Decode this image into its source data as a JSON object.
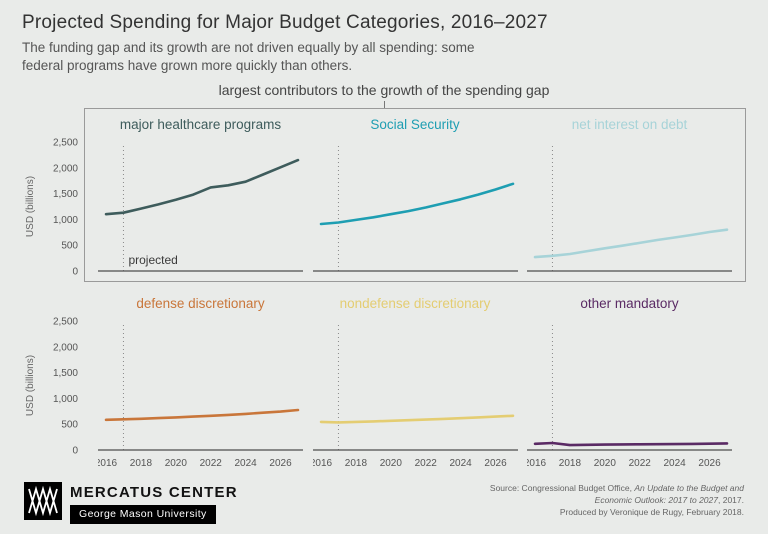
{
  "page": {
    "title": "Projected Spending for Major Budget Categories, 2016–2027",
    "subtitle_lines": [
      "The funding gap and its growth are not driven equally by all spending: some",
      "federal programs have grown more quickly than others."
    ],
    "group_label": "largest contributors to the growth of the spending gap"
  },
  "axes": {
    "y_label": "USD (billions)"
  },
  "chart_data": {
    "type": "line",
    "x": [
      2016,
      2017,
      2018,
      2019,
      2020,
      2021,
      2022,
      2023,
      2024,
      2025,
      2026,
      2027
    ],
    "xlim": [
      2016,
      2027
    ],
    "ylim": [
      0,
      2500
    ],
    "x_ticks": [
      2016,
      2018,
      2020,
      2022,
      2024,
      2026
    ],
    "y_ticks": [
      {
        "v": 2500,
        "label": "2,500"
      },
      {
        "v": 2000,
        "label": "2,000"
      },
      {
        "v": 1500,
        "label": "1,500"
      },
      {
        "v": 1000,
        "label": "1,000"
      },
      {
        "v": 500,
        "label": "500"
      },
      {
        "v": 0,
        "label": "0"
      }
    ],
    "projected_x": 2017,
    "projected_label": "projected",
    "panels": [
      {
        "title": "major healthcare programs",
        "color": "#3e5c5c",
        "values": [
          1100,
          1130,
          1210,
          1290,
          1380,
          1480,
          1620,
          1660,
          1730,
          1870,
          2010,
          2150
        ]
      },
      {
        "title": "Social Security",
        "color": "#1e9eb2",
        "values": [
          910,
          940,
          990,
          1040,
          1100,
          1160,
          1230,
          1310,
          1390,
          1480,
          1580,
          1690
        ]
      },
      {
        "title": "net interest on debt",
        "color": "#a7d3d8",
        "values": [
          270,
          295,
          330,
          385,
          440,
          490,
          545,
          600,
          650,
          700,
          755,
          800
        ]
      },
      {
        "title": "defense discretionary",
        "color": "#c9763a",
        "values": [
          585,
          595,
          605,
          618,
          632,
          648,
          663,
          680,
          700,
          722,
          745,
          775
        ]
      },
      {
        "title": "nondefense discretionary",
        "color": "#e4cd72",
        "values": [
          545,
          535,
          545,
          555,
          565,
          578,
          590,
          603,
          617,
          632,
          648,
          662
        ]
      },
      {
        "title": "other mandatory",
        "color": "#5a2a64",
        "values": [
          120,
          135,
          95,
          100,
          105,
          108,
          110,
          112,
          115,
          118,
          122,
          128
        ]
      }
    ]
  },
  "footer": {
    "brand_name": "MERCATUS CENTER",
    "brand_sub": "George Mason University",
    "source_prefix": "Source: Congressional Budget Office, ",
    "source_italic": "An Update to the Budget and Economic Outlook: 2017 to 2027",
    "source_suffix": ", 2017.",
    "source_line2": "Produced by Veronique de Rugy, February 2018."
  }
}
